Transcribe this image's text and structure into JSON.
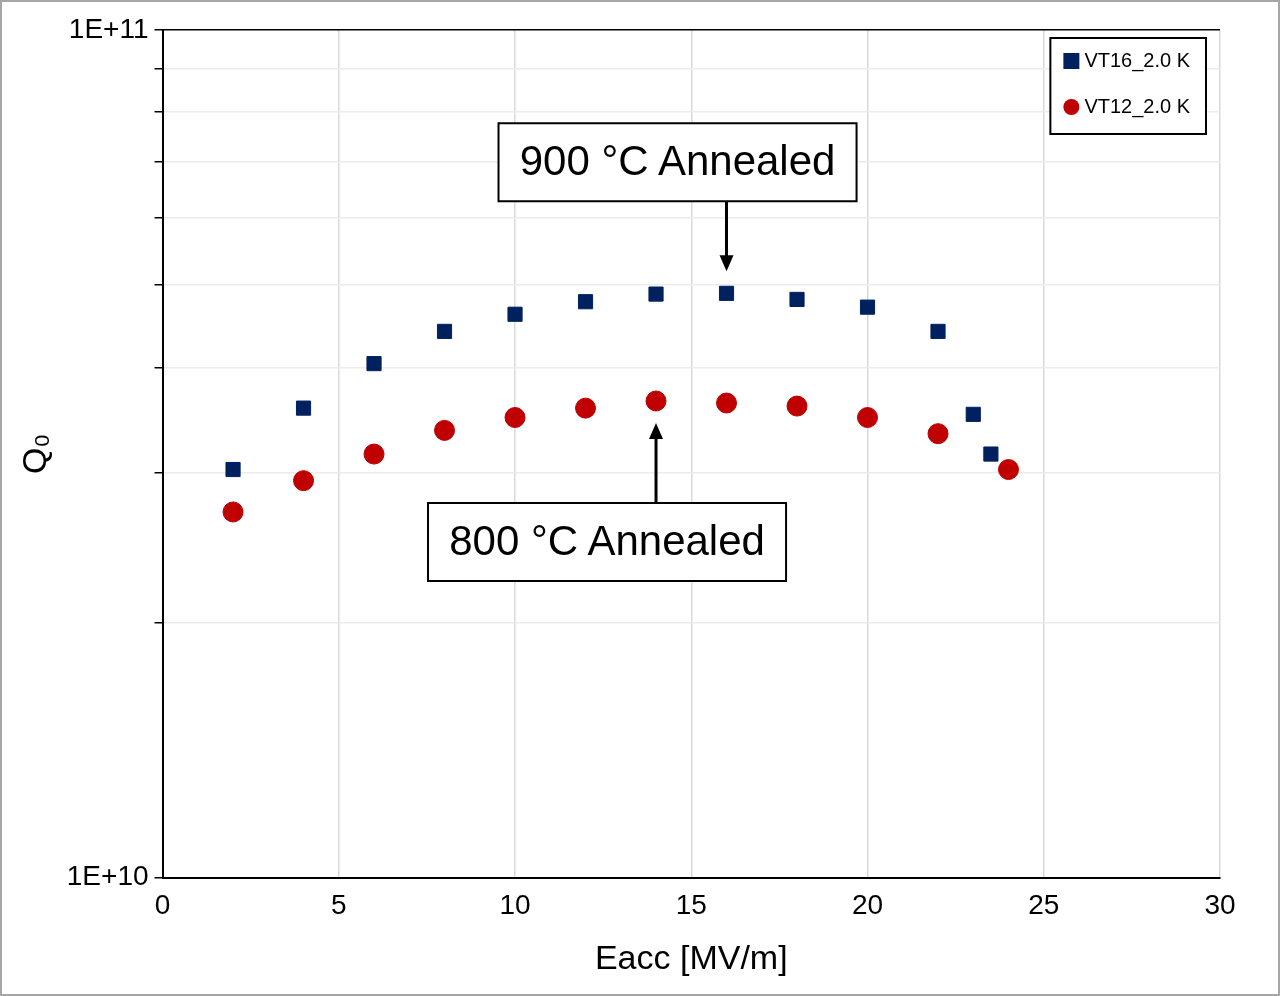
{
  "chart_data": {
    "type": "scatter",
    "xlabel": "Eacc [MV/m]",
    "ylabel": "Q₀",
    "log": "y",
    "grid": true,
    "legend": "top right",
    "xlim": [
      0,
      30
    ],
    "xticks": [
      0,
      5,
      10,
      15,
      20,
      25,
      30
    ],
    "ylim": [
      10000000000,
      100000000000
    ],
    "yticks": [
      {
        "value": 10000000000,
        "label": "1E+10"
      },
      {
        "value": 20000000000,
        "label": null
      },
      {
        "value": 30000000000,
        "label": null
      },
      {
        "value": 40000000000,
        "label": null
      },
      {
        "value": 50000000000,
        "label": null
      },
      {
        "value": 60000000000,
        "label": null
      },
      {
        "value": 70000000000,
        "label": null
      },
      {
        "value": 80000000000,
        "label": null
      },
      {
        "value": 90000000000,
        "label": null
      },
      {
        "value": 100000000000,
        "label": "1E+11"
      }
    ],
    "series": [
      {
        "name": "VT16_2.0 K",
        "color": "#002060",
        "marker": "square",
        "x": [
          2,
          4,
          6,
          8,
          10,
          12,
          14,
          16,
          18,
          20,
          22,
          23,
          23.5
        ],
        "values": [
          30300000000,
          35800000000,
          40400000000,
          44100000000,
          46200000000,
          47800000000,
          48800000000,
          48900000000,
          48100000000,
          47100000000,
          44100000000,
          35200000000,
          31600000000
        ]
      },
      {
        "name": "VT12_2.0 K",
        "color": "#c00000",
        "marker": "circle",
        "x": [
          2,
          4,
          6,
          8,
          10,
          12,
          14,
          16,
          18,
          20,
          22,
          24
        ],
        "values": [
          27000000000,
          29400000000,
          31600000000,
          33700000000,
          34900000000,
          35800000000,
          36500000000,
          36300000000,
          36000000000,
          34900000000,
          33400000000,
          30300000000
        ]
      }
    ],
    "annotations": [
      "900 °C Annealed",
      "800 °C Annealed"
    ]
  }
}
